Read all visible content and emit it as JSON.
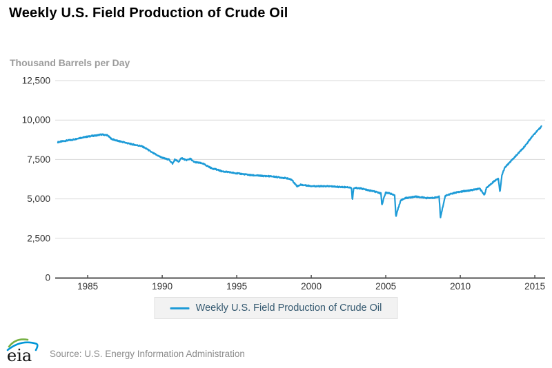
{
  "header": {
    "title": "Weekly U.S. Field Production of Crude Oil",
    "units_label": "Thousand Barrels per Day"
  },
  "chart_data": {
    "type": "line",
    "title": "Weekly U.S. Field Production of Crude Oil",
    "ylabel": "Thousand Barrels per Day",
    "xlabel": "",
    "xlim": [
      1982.82,
      2015.69
    ],
    "ylim": [
      0,
      12500
    ],
    "x_ticks": [
      1985,
      1990,
      1995,
      2000,
      2005,
      2010,
      2015
    ],
    "y_ticks": [
      0,
      2500,
      5000,
      7500,
      10000,
      12500
    ],
    "grid": "horizontal",
    "legend_position": "bottom-center",
    "line_color": "#1d9bd7",
    "grid_color": "#d9d9d9",
    "axis_color": "#4d4d4d",
    "tick_label_color": "#333333",
    "x_start": 1983.0,
    "x_end": 2015.45,
    "sampling": "weekly",
    "weekly_noise": 38,
    "series": [
      {
        "name": "Weekly U.S. Field Production of Crude Oil",
        "unit": "thousand barrels per day",
        "points": [
          [
            1983.0,
            8600
          ],
          [
            1983.3,
            8650
          ],
          [
            1983.6,
            8700
          ],
          [
            1984.0,
            8750
          ],
          [
            1984.4,
            8850
          ],
          [
            1984.8,
            8920
          ],
          [
            1985.2,
            8980
          ],
          [
            1985.6,
            9030
          ],
          [
            1985.9,
            9080
          ],
          [
            1986.3,
            9050
          ],
          [
            1986.6,
            8800
          ],
          [
            1987.0,
            8680
          ],
          [
            1987.4,
            8600
          ],
          [
            1987.8,
            8500
          ],
          [
            1988.2,
            8420
          ],
          [
            1988.6,
            8350
          ],
          [
            1989.0,
            8150
          ],
          [
            1989.3,
            7950
          ],
          [
            1989.6,
            7800
          ],
          [
            1989.9,
            7650
          ],
          [
            1990.2,
            7550
          ],
          [
            1990.45,
            7500
          ],
          [
            1990.7,
            7230
          ],
          [
            1990.85,
            7500
          ],
          [
            1991.1,
            7350
          ],
          [
            1991.3,
            7600
          ],
          [
            1991.6,
            7450
          ],
          [
            1991.9,
            7550
          ],
          [
            1992.1,
            7350
          ],
          [
            1992.4,
            7300
          ],
          [
            1992.7,
            7250
          ],
          [
            1993.0,
            7100
          ],
          [
            1993.3,
            6950
          ],
          [
            1993.7,
            6850
          ],
          [
            1994.0,
            6750
          ],
          [
            1994.4,
            6700
          ],
          [
            1994.8,
            6650
          ],
          [
            1995.2,
            6600
          ],
          [
            1995.6,
            6550
          ],
          [
            1996.0,
            6500
          ],
          [
            1996.4,
            6480
          ],
          [
            1996.8,
            6450
          ],
          [
            1997.2,
            6440
          ],
          [
            1997.6,
            6400
          ],
          [
            1998.0,
            6350
          ],
          [
            1998.4,
            6300
          ],
          [
            1998.7,
            6200
          ],
          [
            1999.05,
            5800
          ],
          [
            1999.3,
            5900
          ],
          [
            1999.7,
            5850
          ],
          [
            2000.0,
            5820
          ],
          [
            2000.4,
            5800
          ],
          [
            2000.8,
            5800
          ],
          [
            2001.2,
            5800
          ],
          [
            2001.6,
            5780
          ],
          [
            2002.0,
            5750
          ],
          [
            2002.4,
            5750
          ],
          [
            2002.7,
            5700
          ],
          [
            2002.76,
            4900
          ],
          [
            2002.84,
            5650
          ],
          [
            2003.0,
            5700
          ],
          [
            2003.4,
            5650
          ],
          [
            2003.8,
            5550
          ],
          [
            2004.2,
            5480
          ],
          [
            2004.68,
            5350
          ],
          [
            2004.74,
            4600
          ],
          [
            2004.85,
            5000
          ],
          [
            2005.0,
            5400
          ],
          [
            2005.3,
            5350
          ],
          [
            2005.6,
            5200
          ],
          [
            2005.68,
            3900
          ],
          [
            2005.8,
            4300
          ],
          [
            2006.0,
            4900
          ],
          [
            2006.3,
            5050
          ],
          [
            2006.7,
            5100
          ],
          [
            2007.0,
            5150
          ],
          [
            2007.4,
            5100
          ],
          [
            2007.8,
            5050
          ],
          [
            2008.1,
            5060
          ],
          [
            2008.4,
            5100
          ],
          [
            2008.58,
            5150
          ],
          [
            2008.67,
            3800
          ],
          [
            2008.8,
            4400
          ],
          [
            2009.0,
            5200
          ],
          [
            2009.3,
            5300
          ],
          [
            2009.7,
            5400
          ],
          [
            2010.0,
            5450
          ],
          [
            2010.3,
            5500
          ],
          [
            2010.7,
            5550
          ],
          [
            2011.0,
            5600
          ],
          [
            2011.3,
            5650
          ],
          [
            2011.63,
            5250
          ],
          [
            2011.75,
            5700
          ],
          [
            2012.0,
            5900
          ],
          [
            2012.3,
            6150
          ],
          [
            2012.55,
            6300
          ],
          [
            2012.66,
            5450
          ],
          [
            2012.8,
            6550
          ],
          [
            2013.0,
            7000
          ],
          [
            2013.3,
            7300
          ],
          [
            2013.6,
            7600
          ],
          [
            2013.9,
            7900
          ],
          [
            2014.2,
            8200
          ],
          [
            2014.5,
            8550
          ],
          [
            2014.8,
            8950
          ],
          [
            2015.0,
            9150
          ],
          [
            2015.2,
            9350
          ],
          [
            2015.4,
            9550
          ],
          [
            2015.45,
            9600
          ]
        ]
      }
    ]
  },
  "legend": {
    "label": "Weekly U.S. Field Production of Crude Oil",
    "swatch_color": "#1d9bd7"
  },
  "footer": {
    "logo_text": "eia",
    "logo_green": "#76b043",
    "logo_blue": "#0096d7",
    "source": "Source: U.S. Energy Information Administration"
  }
}
